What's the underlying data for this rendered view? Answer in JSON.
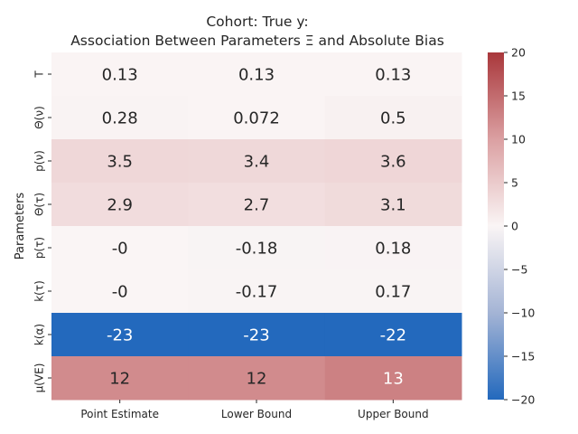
{
  "chart_data": {
    "type": "heatmap",
    "title_line1": "Cohort: True y:",
    "title_line2": "Association Between Parameters Ξ and Absolute Bias",
    "ylabel": "Parameters",
    "xlabel": "",
    "columns": [
      "Point Estimate",
      "Lower Bound",
      "Upper Bound"
    ],
    "rows": [
      "T",
      "Θ(ν)",
      "p(ν)",
      "Θ(τ)",
      "p(τ)",
      "k(τ)",
      "k(α)",
      "μ(VE)"
    ],
    "values": [
      [
        0.13,
        0.13,
        0.13
      ],
      [
        0.28,
        0.072,
        0.5
      ],
      [
        3.5,
        3.4,
        3.6
      ],
      [
        2.9,
        2.7,
        3.1
      ],
      [
        0,
        -0.18,
        0.18
      ],
      [
        0,
        -0.17,
        0.17
      ],
      [
        -23,
        -23,
        -22
      ],
      [
        12,
        12,
        13
      ]
    ],
    "labels": [
      [
        "0.13",
        "0.13",
        "0.13"
      ],
      [
        "0.28",
        "0.072",
        "0.5"
      ],
      [
        "3.5",
        "3.4",
        "3.6"
      ],
      [
        "2.9",
        "2.7",
        "3.1"
      ],
      [
        "-0",
        "-0.18",
        "0.18"
      ],
      [
        "-0",
        "-0.17",
        "0.17"
      ],
      [
        "-23",
        "-23",
        "-22"
      ],
      [
        "12",
        "12",
        "13"
      ]
    ],
    "colormap": "vlag",
    "vmin": -20,
    "vmax": 20,
    "colorbar_ticks": [
      20,
      15,
      10,
      5,
      0,
      -5,
      -10,
      -15,
      -20
    ],
    "colorbar_tick_labels": [
      "20",
      "15",
      "10",
      "5",
      "0",
      "−5",
      "−10",
      "−15",
      "−20"
    ],
    "colors": {
      "low": "#2369bd",
      "mid": "#faf5f5",
      "high": "#a9373b"
    }
  }
}
